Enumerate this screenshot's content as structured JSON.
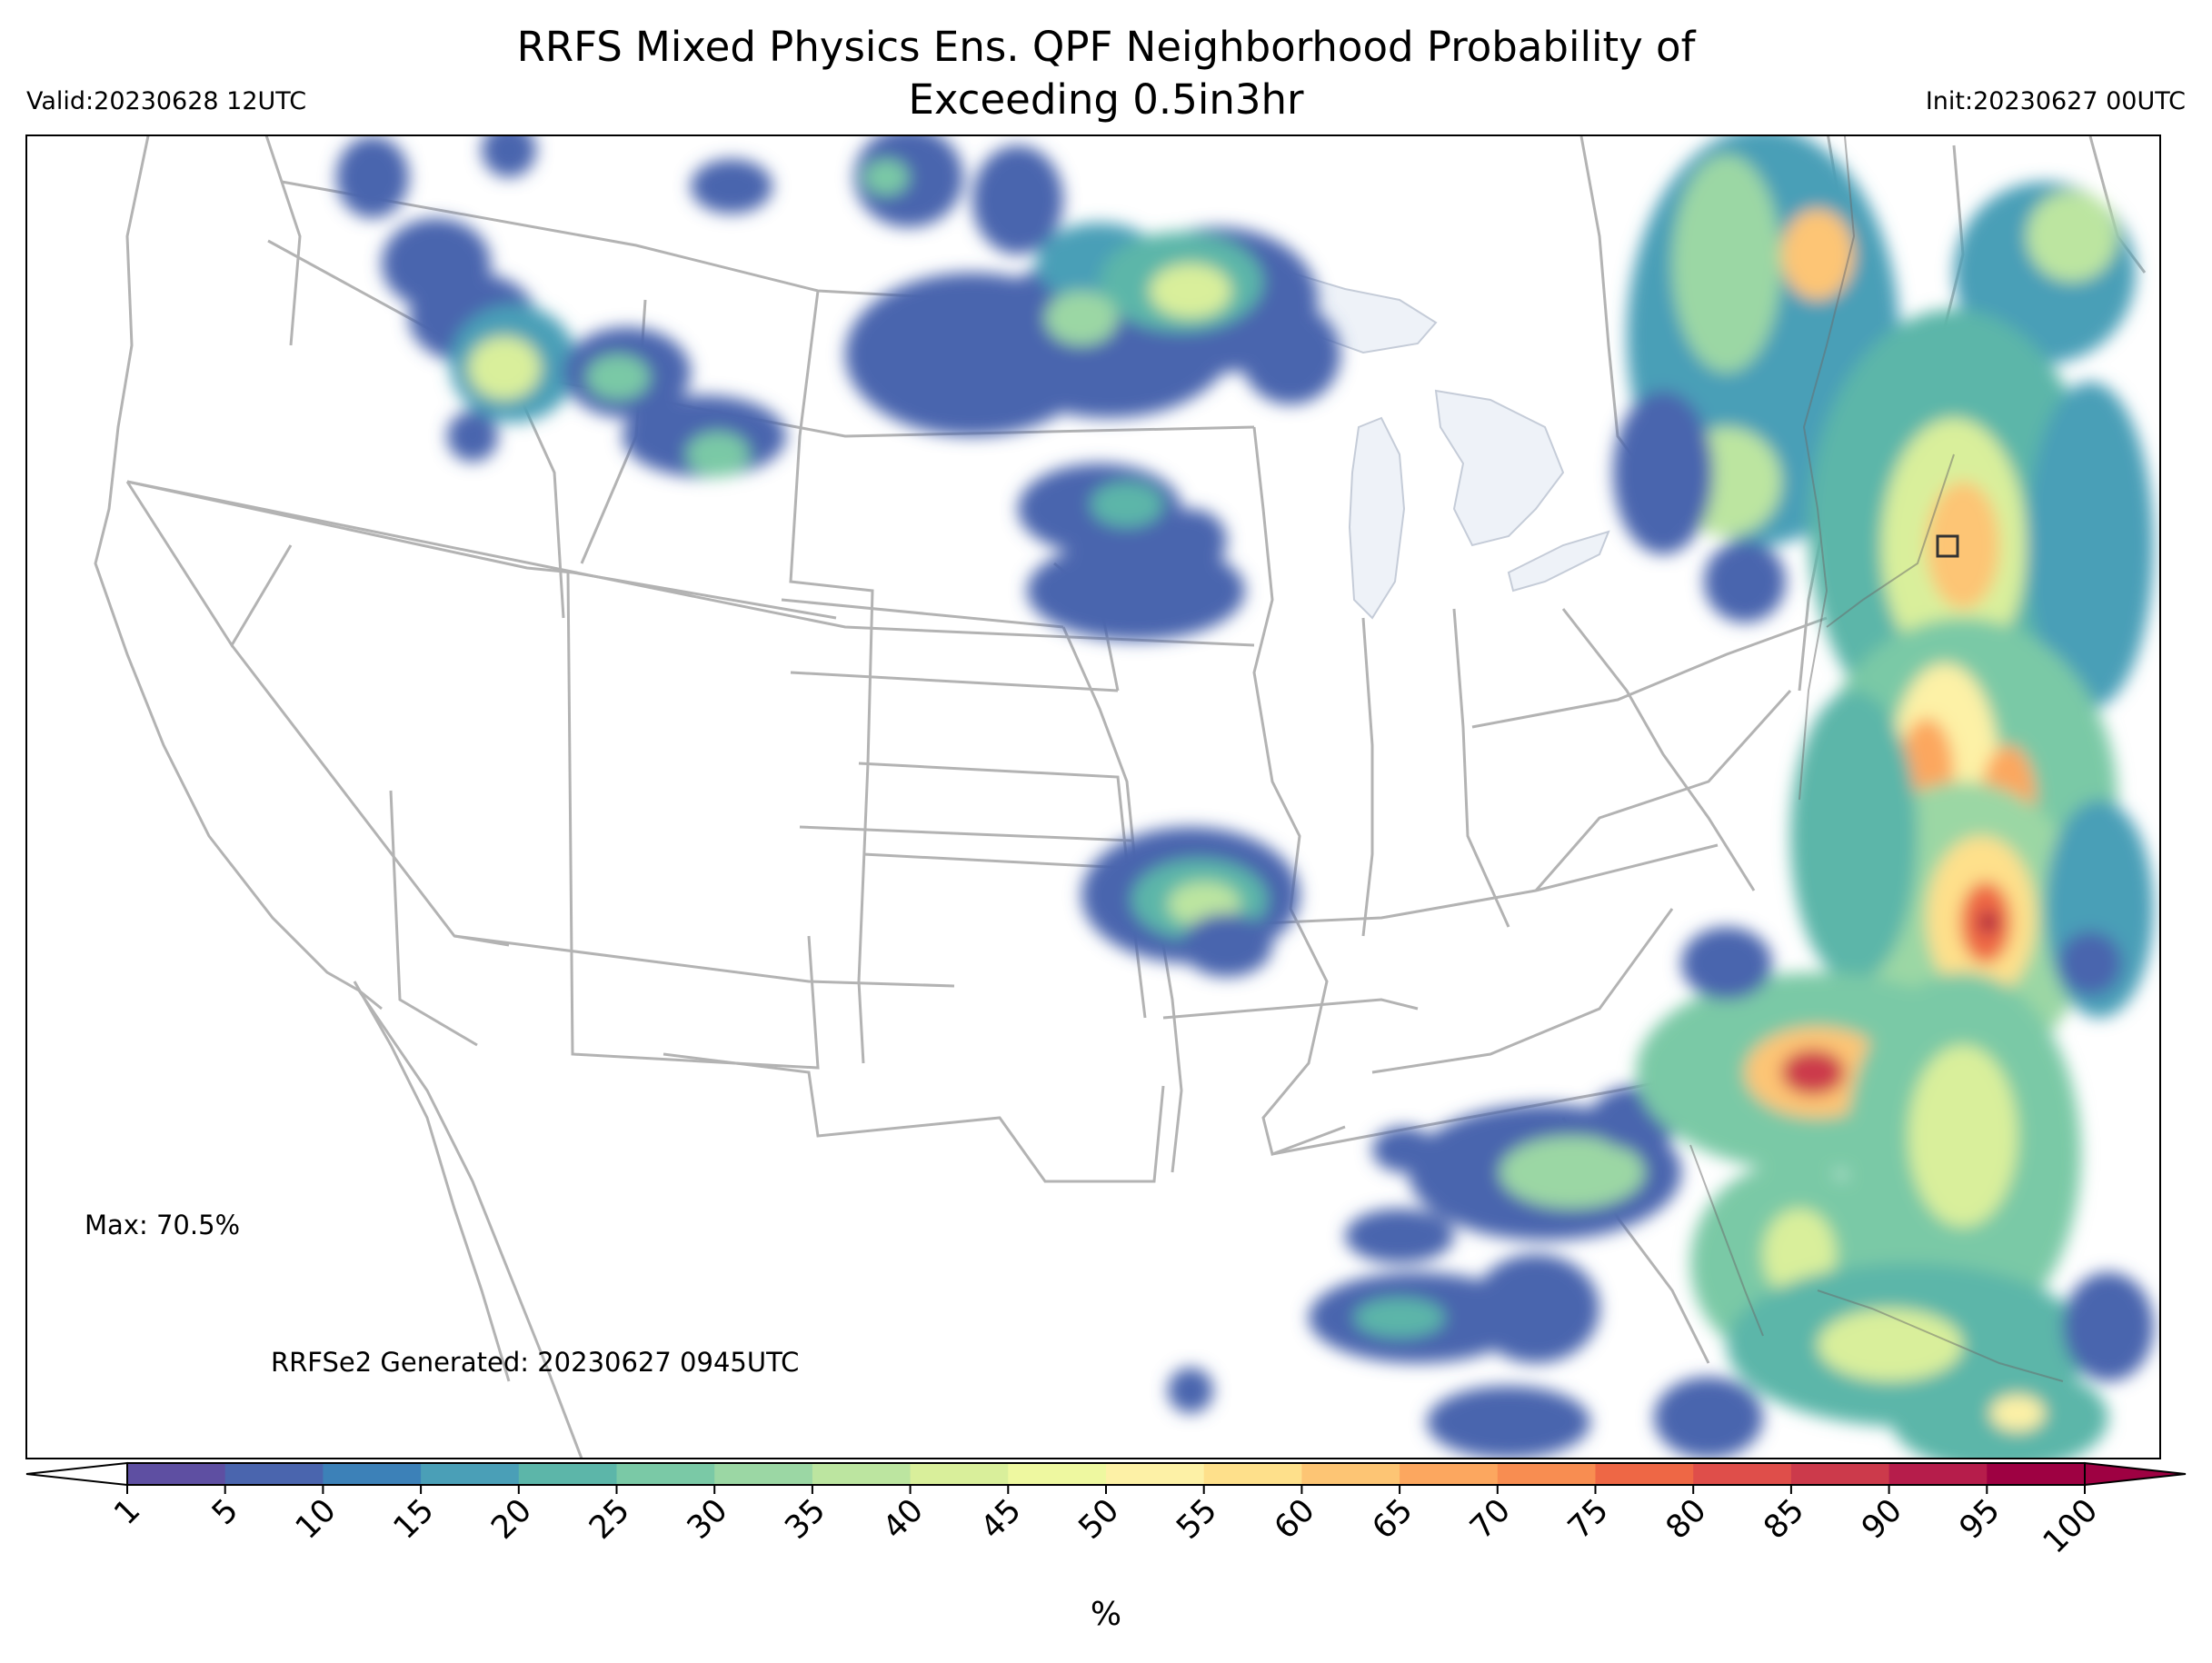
{
  "header": {
    "title_line1": "RRFS Mixed Physics Ens. QPF Neighborhood Probability of",
    "title_line2": "Exceeding 0.5in3hr",
    "valid": "Valid:20230628 12UTC",
    "init": "Init:20230627 00UTC"
  },
  "annotations": {
    "max": "Max: 70.5%",
    "generated": "RRFSe2 Generated: 20230627 0945UTC"
  },
  "colorbar": {
    "units": "%",
    "ticks": [
      "1",
      "5",
      "10",
      "15",
      "20",
      "25",
      "30",
      "35",
      "40",
      "45",
      "50",
      "55",
      "60",
      "65",
      "70",
      "75",
      "80",
      "85",
      "90",
      "95",
      "100"
    ],
    "colors": [
      "#5e4fa2",
      "#4a65ae",
      "#3c81b8",
      "#4a9fb7",
      "#5cb6a9",
      "#7ac9a6",
      "#9bd7a4",
      "#bce5a0",
      "#d9ef9b",
      "#eef8a0",
      "#fdf1a6",
      "#fee08b",
      "#fdc574",
      "#fca75f",
      "#f88d51",
      "#ee6745",
      "#df4e4a",
      "#cc3a4b",
      "#b61d4b",
      "#9e0142"
    ],
    "under_color": "#ffffff",
    "over_color": "#9e0142"
  },
  "map": {
    "projection": "Lambert conformal, CONUS",
    "water_color": "#eef2f8",
    "border_color": "#b3b3b3",
    "box_marker_color": "#333333"
  }
}
